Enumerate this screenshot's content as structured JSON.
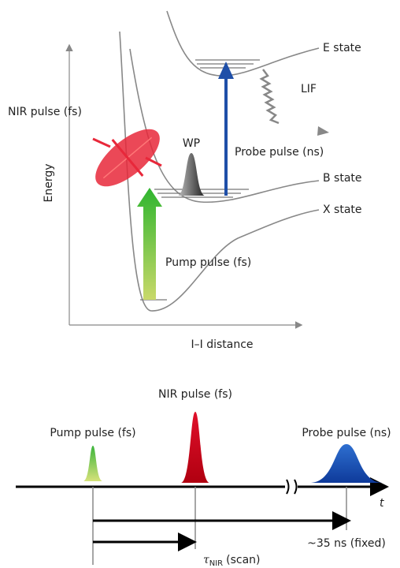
{
  "energy_diagram": {
    "y_axis_label": "Energy",
    "x_axis_label": "I–I distance",
    "states": [
      "E state",
      "B state",
      "X state"
    ],
    "labels": {
      "lif": "LIF",
      "nir_pulse": "NIR pulse (fs)",
      "wave_packet": "WP",
      "probe_pulse": "Probe pulse (ns)",
      "pump_pulse": "Pump pulse (fs)"
    }
  },
  "timing_diagram": {
    "pulses": [
      "Pump pulse (fs)",
      "NIR pulse (fs)",
      "Probe pulse (ns)"
    ],
    "time_axis_label": "t",
    "probe_delay": "~35 ns (fixed)",
    "nir_delay": {
      "symbol": "τ",
      "subscript": "NIR",
      "text": "(scan)"
    }
  }
}
